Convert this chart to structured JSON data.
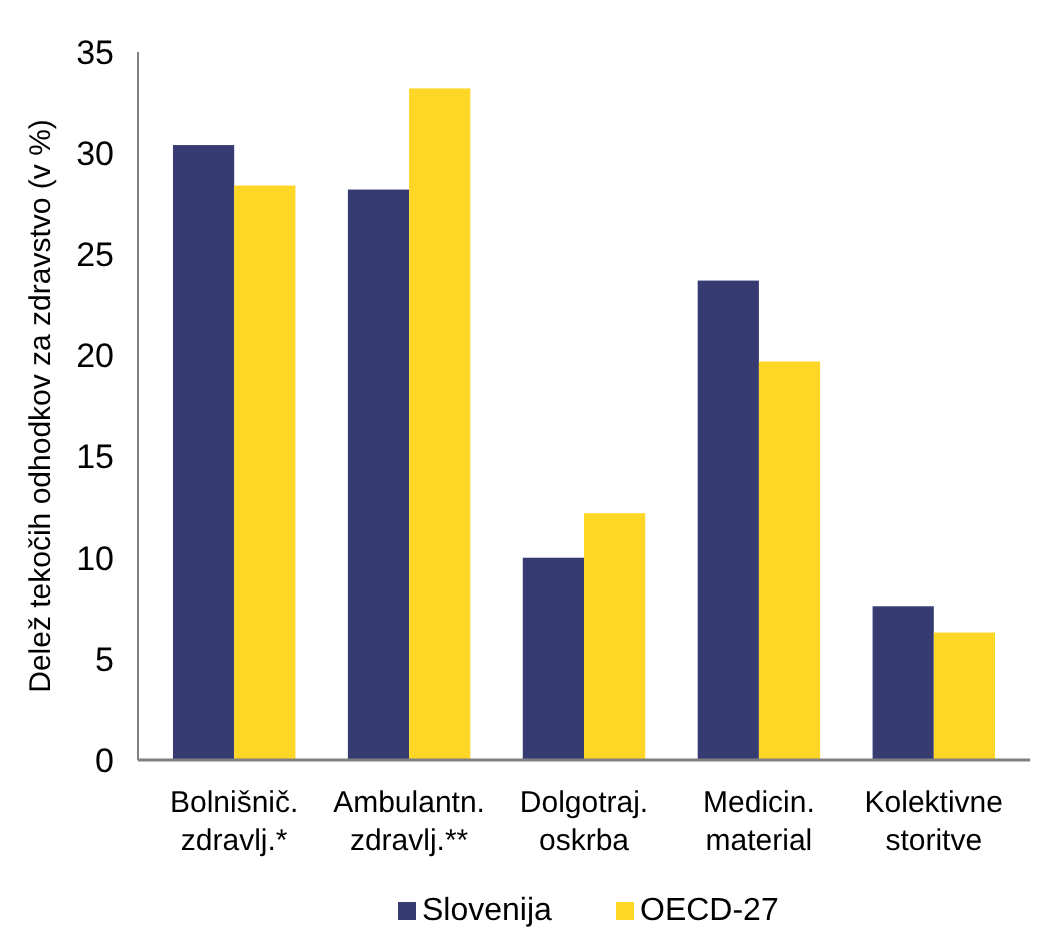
{
  "chart_data": {
    "type": "bar",
    "ylabel": "Delež tekočih odhodkov za zdravstvo (v %)",
    "categories": [
      "Bolnišnič. zdravlj.*",
      "Ambulantn. zdravlj.**",
      "Dolgotraj. oskrba",
      "Medicin. material",
      "Kolektivne storitve"
    ],
    "series": [
      {
        "name": "Slovenija",
        "color": "#363b72",
        "values": [
          30.4,
          28.2,
          10.0,
          23.7,
          7.6
        ]
      },
      {
        "name": "OECD-27",
        "color": "#fed626",
        "values": [
          28.4,
          33.2,
          12.2,
          19.7,
          6.3
        ]
      }
    ],
    "ylim": [
      0,
      35
    ],
    "yticks": [
      0,
      5,
      10,
      15,
      20,
      25,
      30,
      35
    ],
    "grid": false,
    "legend": "bottom"
  }
}
